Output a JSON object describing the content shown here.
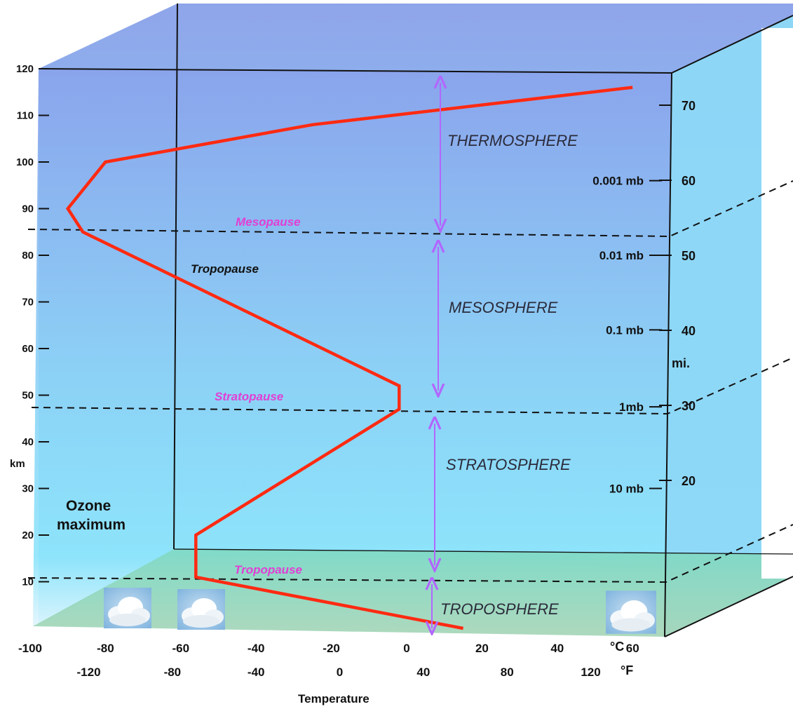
{
  "colors": {
    "sky_top": "#8fa5ea",
    "sky_bottom": "#8fe8fb",
    "floor": "#8ed6c2",
    "profile": "#ff2a12",
    "arrow": "#b266ff",
    "pause_label": "#e13fd4"
  },
  "axes": {
    "left": {
      "ticks": [
        "120",
        "110",
        "100",
        "90",
        "80",
        "70",
        "60",
        "50",
        "40",
        "30",
        "20",
        "10"
      ],
      "unit": "km"
    },
    "right": {
      "ticks": [
        "70",
        "60",
        "50",
        "40",
        "30",
        "20"
      ],
      "unit": "mi."
    },
    "bottom_c": {
      "ticks": [
        "-100",
        "-80",
        "-60",
        "-40",
        "-20",
        "0",
        "20",
        "40",
        "60"
      ],
      "unit": "°C"
    },
    "bottom_f": {
      "ticks": [
        "-120",
        "-80",
        "-40",
        "0",
        "40",
        "80",
        "120"
      ],
      "unit": "°F"
    },
    "xlabel": "Temperature"
  },
  "pressure_labels": [
    "0.001 mb",
    "0.01 mb",
    "0.1 mb",
    "1mb",
    "10 mb"
  ],
  "layers": [
    "THERMOSPHERE",
    "MESOSPHERE",
    "STRATOSPHERE",
    "TROPOSPHERE"
  ],
  "pauses": {
    "mesopause": "Mesopause",
    "stratopause": "Stratopause",
    "tropopause": "Tropopause",
    "tropopause_black": "Tropopause"
  },
  "ozone": {
    "line1": "Ozone",
    "line2": "maximum"
  },
  "temperature_profile": {
    "altitude_km": [
      0,
      11,
      20,
      47,
      52,
      85,
      90,
      100,
      108,
      116
    ],
    "temperature_c": [
      15,
      -56,
      -56,
      -2,
      -2,
      -86,
      -90,
      -80,
      -25,
      60
    ]
  },
  "cloud_icons": [
    "cloud-icon",
    "cloud-icon",
    "cloud-icon"
  ]
}
